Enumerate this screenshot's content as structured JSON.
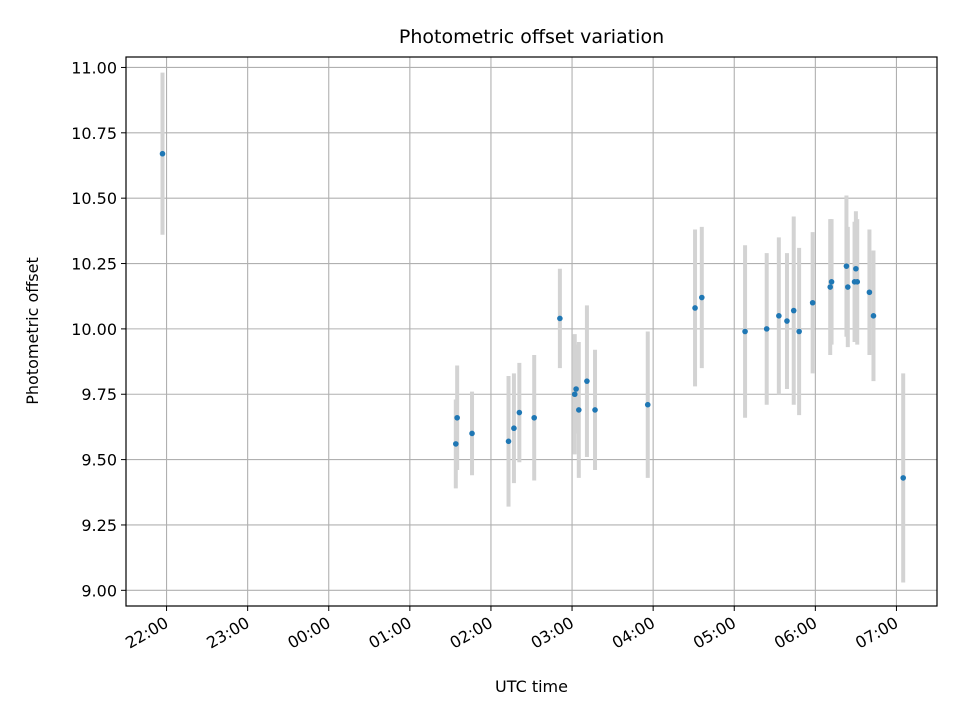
{
  "chart_data": {
    "type": "scatter",
    "title": "Photometric offset variation",
    "xlabel": "UTC time",
    "ylabel": "Photometric offset",
    "x_tick_labels": [
      "22:00",
      "23:00",
      "00:00",
      "01:00",
      "02:00",
      "03:00",
      "04:00",
      "05:00",
      "06:00",
      "07:00"
    ],
    "y_tick_labels": [
      "9.00",
      "9.25",
      "9.50",
      "9.75",
      "10.00",
      "10.25",
      "10.50",
      "10.75",
      "11.00"
    ],
    "x_range": [
      "21:30",
      "07:30"
    ],
    "ylim": [
      8.94,
      11.04
    ],
    "grid": true,
    "colors": {
      "point": "#1f77b4",
      "errorbar": "#d3d3d3",
      "grid": "#b0b0b0"
    },
    "points": [
      {
        "x": "21:57",
        "y": 10.67,
        "err": 0.31
      },
      {
        "x": "01:34",
        "y": 9.56,
        "err": 0.17
      },
      {
        "x": "01:35",
        "y": 9.66,
        "err": 0.2
      },
      {
        "x": "01:46",
        "y": 9.6,
        "err": 0.16
      },
      {
        "x": "02:13",
        "y": 9.57,
        "err": 0.25
      },
      {
        "x": "02:17",
        "y": 9.62,
        "err": 0.21
      },
      {
        "x": "02:21",
        "y": 9.68,
        "err": 0.19
      },
      {
        "x": "02:32",
        "y": 9.66,
        "err": 0.24
      },
      {
        "x": "02:51",
        "y": 10.04,
        "err": 0.19
      },
      {
        "x": "03:02",
        "y": 9.75,
        "err": 0.23
      },
      {
        "x": "03:03",
        "y": 9.77,
        "err": 0.17
      },
      {
        "x": "03:05",
        "y": 9.69,
        "err": 0.26
      },
      {
        "x": "03:11",
        "y": 9.8,
        "err": 0.29
      },
      {
        "x": "03:17",
        "y": 9.69,
        "err": 0.23
      },
      {
        "x": "03:56",
        "y": 9.71,
        "err": 0.28
      },
      {
        "x": "04:31",
        "y": 10.08,
        "err": 0.3
      },
      {
        "x": "04:36",
        "y": 10.12,
        "err": 0.27
      },
      {
        "x": "05:08",
        "y": 9.99,
        "err": 0.33
      },
      {
        "x": "05:24",
        "y": 10.0,
        "err": 0.29
      },
      {
        "x": "05:33",
        "y": 10.05,
        "err": 0.3
      },
      {
        "x": "05:39",
        "y": 10.03,
        "err": 0.26
      },
      {
        "x": "05:44",
        "y": 10.07,
        "err": 0.36
      },
      {
        "x": "05:48",
        "y": 9.99,
        "err": 0.32
      },
      {
        "x": "05:58",
        "y": 10.1,
        "err": 0.27
      },
      {
        "x": "06:11",
        "y": 10.16,
        "err": 0.26
      },
      {
        "x": "06:12",
        "y": 10.18,
        "err": 0.24
      },
      {
        "x": "06:23",
        "y": 10.24,
        "err": 0.27
      },
      {
        "x": "06:24",
        "y": 10.16,
        "err": 0.23
      },
      {
        "x": "06:29",
        "y": 10.18,
        "err": 0.23
      },
      {
        "x": "06:30",
        "y": 10.23,
        "err": 0.22
      },
      {
        "x": "06:31",
        "y": 10.18,
        "err": 0.24
      },
      {
        "x": "06:40",
        "y": 10.14,
        "err": 0.24
      },
      {
        "x": "06:43",
        "y": 10.05,
        "err": 0.25
      },
      {
        "x": "07:05",
        "y": 9.43,
        "err": 0.4
      }
    ]
  }
}
